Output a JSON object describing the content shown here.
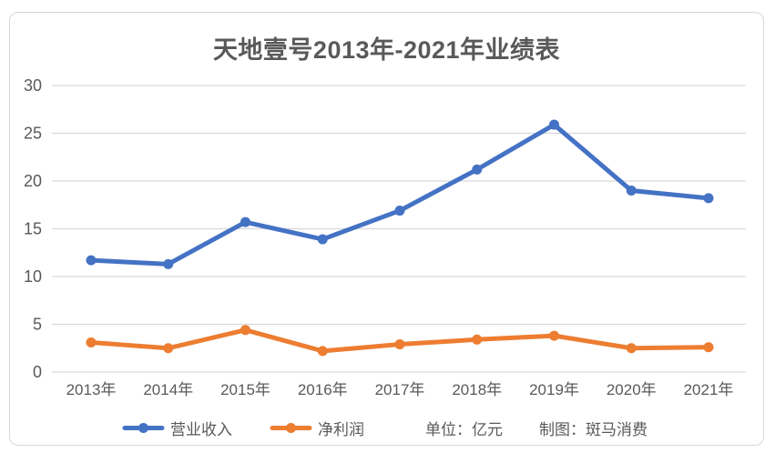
{
  "title": "天地壹号2013年-2021年业绩表",
  "chart_data": {
    "type": "line",
    "title": "天地壹号2013年-2021年业绩表",
    "categories": [
      "2013年",
      "2014年",
      "2015年",
      "2016年",
      "2017年",
      "2018年",
      "2019年",
      "2020年",
      "2021年"
    ],
    "series": [
      {
        "key": "revenue",
        "name": "营业收入",
        "color": "#4472C4",
        "values": [
          11.7,
          11.3,
          15.7,
          13.9,
          16.9,
          21.2,
          25.9,
          19.0,
          18.2
        ]
      },
      {
        "key": "profit",
        "name": "净利润",
        "color": "#ED7D31",
        "values": [
          3.1,
          2.5,
          4.4,
          2.2,
          2.9,
          3.4,
          3.8,
          2.5,
          2.6
        ]
      }
    ],
    "ylim": [
      0,
      30
    ],
    "yticks": [
      0,
      5,
      10,
      15,
      20,
      25,
      30
    ],
    "grid": true,
    "legend_position": "bottom",
    "marker": "circle"
  },
  "footer": {
    "unit_note": "单位：亿元",
    "credit_note": "制图：斑马消费"
  },
  "colors": {
    "revenue_line": "#4472C4",
    "profit_line": "#ED7D31",
    "gridline": "#D9D9D9",
    "text": "#595959",
    "card_border": "#D8D8D8",
    "background": "#FFFFFF"
  }
}
